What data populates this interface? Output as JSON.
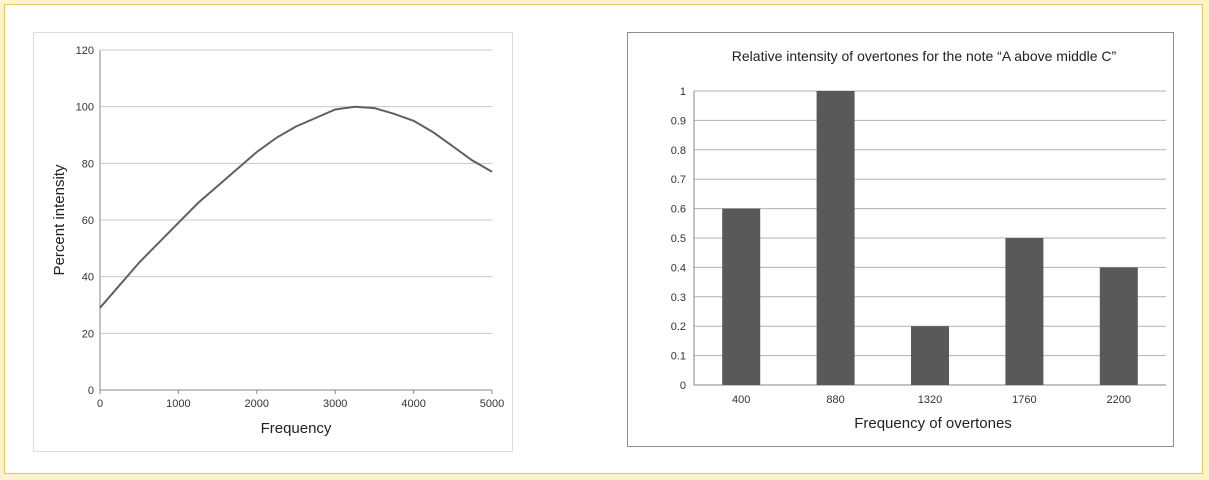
{
  "chart_data": [
    {
      "type": "line",
      "xlabel": "Frequency",
      "ylabel": "Percent intensity",
      "xlim": [
        0,
        5000
      ],
      "ylim": [
        0,
        120
      ],
      "x_ticks": [
        0,
        1000,
        2000,
        3000,
        4000,
        5000
      ],
      "x_tick_labels": [
        "0",
        "1000",
        "2000",
        "3000",
        "4000",
        "5000"
      ],
      "y_ticks": [
        0,
        20,
        40,
        60,
        80,
        100,
        120
      ],
      "grid": true,
      "line_color": "#606060",
      "series": [
        {
          "x": [
            0,
            250,
            500,
            750,
            1000,
            1250,
            1500,
            1750,
            2000,
            2250,
            2500,
            2750,
            3000,
            3250,
            3500,
            3750,
            4000,
            4250,
            4500,
            4750,
            5000
          ],
          "y": [
            29,
            37,
            45,
            52,
            59,
            66,
            72,
            78,
            84,
            89,
            93,
            96,
            99,
            100,
            99.5,
            97.5,
            95,
            91,
            86,
            81,
            77
          ]
        }
      ]
    },
    {
      "type": "bar",
      "title": "Relative intensity of overtones for the note “A above middle C”",
      "xlabel": "Frequency of overtones",
      "ylabel": "",
      "ylim": [
        0,
        1
      ],
      "y_ticks": [
        0,
        0.1,
        0.2,
        0.3,
        0.4,
        0.5,
        0.6,
        0.7,
        0.8,
        0.9,
        1
      ],
      "grid": true,
      "bar_color": "#595959",
      "categories": [
        "400",
        "880",
        "1320",
        "1760",
        "2200"
      ],
      "values": [
        0.6,
        1,
        0.2,
        0.5,
        0.4
      ]
    }
  ]
}
